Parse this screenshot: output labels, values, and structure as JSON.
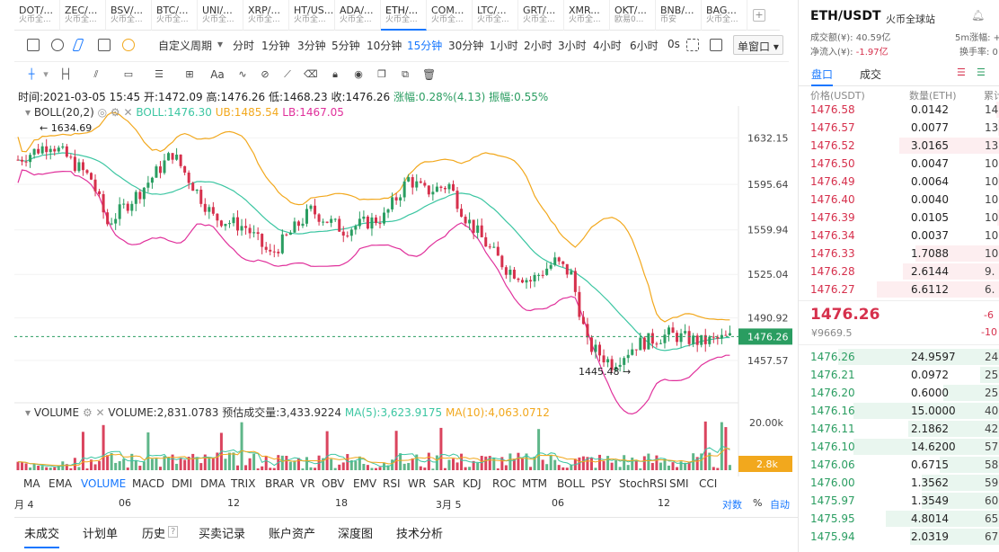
{
  "tickers": [
    {
      "sym": "DOT/...",
      "ex": "火币全..."
    },
    {
      "sym": "ZEC/...",
      "ex": "火币全..."
    },
    {
      "sym": "BSV/...",
      "ex": "火币全..."
    },
    {
      "sym": "BTC/...",
      "ex": "火币全..."
    },
    {
      "sym": "UNI/...",
      "ex": "火币全..."
    },
    {
      "sym": "XRP/...",
      "ex": "火币全..."
    },
    {
      "sym": "HT/US...",
      "ex": "火币全..."
    },
    {
      "sym": "ADA/...",
      "ex": "火币全..."
    },
    {
      "sym": "ETH/...",
      "ex": "火币全..."
    },
    {
      "sym": "COM...",
      "ex": "火币全..."
    },
    {
      "sym": "LTC/...",
      "ex": "火币全..."
    },
    {
      "sym": "GRT/...",
      "ex": "火币全..."
    },
    {
      "sym": "XMR...",
      "ex": "火币全..."
    },
    {
      "sym": "OKT/...",
      "ex": "欧易0..."
    },
    {
      "sym": "BNB/...",
      "ex": "币安"
    },
    {
      "sym": "BAG...",
      "ex": "火币全..."
    }
  ],
  "toolbar": {
    "period_label": "自定义周期",
    "periods": [
      "分时",
      "1分钟",
      "3分钟",
      "5分钟",
      "10分钟",
      "15分钟",
      "30分钟",
      "1小时",
      "2小时",
      "3小时",
      "4小时",
      "6小时",
      "0s"
    ],
    "active_period": "15分钟",
    "window_label": "单窗口"
  },
  "drawtools": {
    "text_tool": "Aa"
  },
  "info": {
    "time": "时间:2021-03-05 15:45",
    "open": "开:1472.09",
    "high": "高:1476.26",
    "low": "低:1468.23",
    "close": "收:1476.26",
    "change": "涨幅:0.28%(4.13)",
    "amp": "振幅:0.55%"
  },
  "boll": {
    "name": "BOLL(20,2)",
    "mid": "BOLL:1476.30",
    "ub": "UB:1485.54",
    "lb": "LB:1467.05"
  },
  "price_axis": [
    "1632.15",
    "1595.64",
    "1559.94",
    "1525.04",
    "1490.92",
    "1457.57"
  ],
  "current_price_tag": "1476.26",
  "annotations": {
    "high": "1634.69",
    "low": "1445.48"
  },
  "volume": {
    "name": "VOLUME",
    "value": "VOLUME:2,831.0783",
    "forecast": "预估成交量:3,433.9224",
    "ma5": "MA(5):3,623.9175",
    "ma10": "MA(10):4,063.0712",
    "axis_top": "20.00k",
    "current_tag": "2.8k"
  },
  "indicators": [
    "MA",
    "EMA",
    "VOLUME",
    "MACD",
    "DMI",
    "DMA",
    "TRIX",
    "BRAR",
    "VR",
    "OBV",
    "EMV",
    "RSI",
    "WR",
    "SAR",
    "KDJ",
    "ROC",
    "MTM",
    "BOLL",
    "PSY",
    "StochRSI",
    "SMI",
    "CCI"
  ],
  "active_indicator": "VOLUME",
  "dates": [
    "月 4",
    "06",
    "12",
    "18",
    "3月 5",
    "06",
    "12"
  ],
  "date_controls": [
    "对数",
    "%",
    "自动"
  ],
  "bottom_tabs": [
    "未成交",
    "计划单",
    "历史",
    "买卖记录",
    "账户资产",
    "深度图",
    "技术分析"
  ],
  "panel": {
    "pair": "ETH/USDT",
    "exchange": "火币全球站",
    "turnover": "成交额(¥): 40.59亿",
    "netflow": "净流入(¥): -1.97亿",
    "change5m": "5m涨幅: +0",
    "turnover_rate": "换手率: 0",
    "tab_book": "盘口",
    "tab_trades": "成交",
    "col_price": "价格(USDT)",
    "col_qty": "数量(ETH)",
    "col_cum": "累计",
    "last_price": "1476.26",
    "last_cny": "¥9669.5",
    "last_chg1": "-6",
    "last_chg2": "-10"
  },
  "asks": [
    {
      "p": "1476.58",
      "q": "0.0142",
      "c": "14."
    },
    {
      "p": "1476.57",
      "q": "0.0077",
      "c": "13."
    },
    {
      "p": "1476.52",
      "q": "3.0165",
      "c": "13."
    },
    {
      "p": "1476.50",
      "q": "0.0047",
      "c": "10."
    },
    {
      "p": "1476.49",
      "q": "0.0064",
      "c": "10."
    },
    {
      "p": "1476.40",
      "q": "0.0040",
      "c": "10."
    },
    {
      "p": "1476.39",
      "q": "0.0105",
      "c": "10."
    },
    {
      "p": "1476.34",
      "q": "0.0037",
      "c": "10."
    },
    {
      "p": "1476.33",
      "q": "1.7088",
      "c": "10."
    },
    {
      "p": "1476.28",
      "q": "2.6144",
      "c": "9."
    },
    {
      "p": "1476.27",
      "q": "6.6112",
      "c": "6."
    }
  ],
  "bids": [
    {
      "p": "1476.26",
      "q": "24.9597",
      "c": "24."
    },
    {
      "p": "1476.21",
      "q": "0.0972",
      "c": "25."
    },
    {
      "p": "1476.20",
      "q": "0.6000",
      "c": "25."
    },
    {
      "p": "1476.16",
      "q": "15.0000",
      "c": "40."
    },
    {
      "p": "1476.11",
      "q": "2.1862",
      "c": "42."
    },
    {
      "p": "1476.10",
      "q": "14.6200",
      "c": "57."
    },
    {
      "p": "1476.06",
      "q": "0.6715",
      "c": "58."
    },
    {
      "p": "1476.00",
      "q": "1.3562",
      "c": "59."
    },
    {
      "p": "1475.97",
      "q": "1.3549",
      "c": "60."
    },
    {
      "p": "1475.95",
      "q": "4.8014",
      "c": "65."
    },
    {
      "p": "1475.94",
      "q": "2.0319",
      "c": "67."
    }
  ],
  "colors": {
    "up": "#2a9d61",
    "down": "#d6304c",
    "accent": "#1677ff",
    "ub": "#f2a81d",
    "mid": "#3cc6a2",
    "lb": "#e0309b",
    "ma10": "#f2a81d"
  }
}
